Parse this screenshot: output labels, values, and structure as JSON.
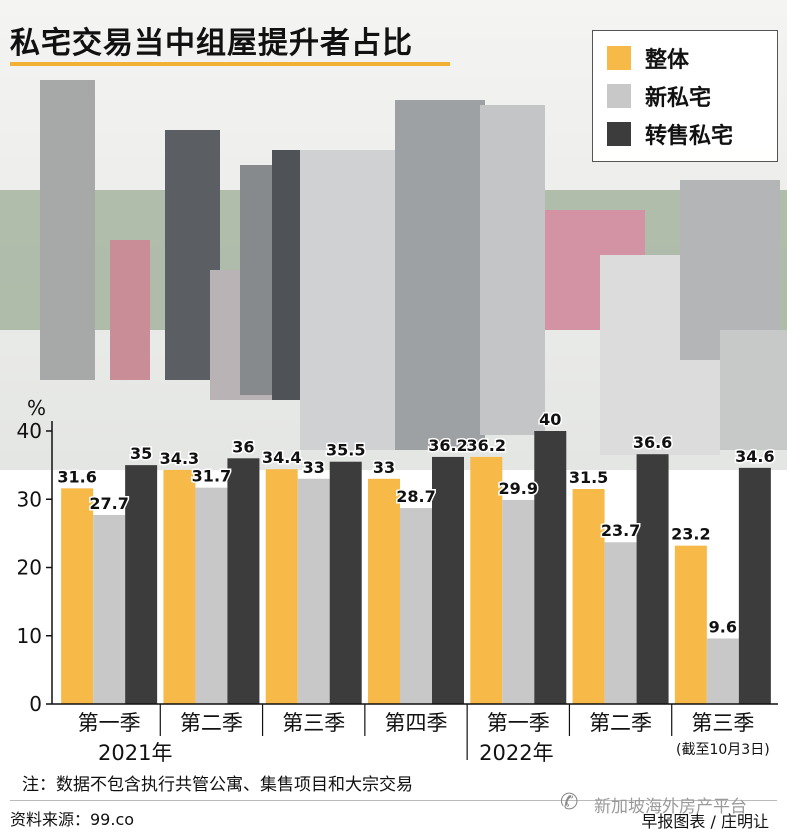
{
  "title": "私宅交易当中组屋提升者占比",
  "legend": [
    {
      "label": "整体",
      "color": "#F7B948"
    },
    {
      "label": "新私宅",
      "color": "#C8C8C8"
    },
    {
      "label": "转售私宅",
      "color": "#3C3C3C"
    }
  ],
  "chart_data": {
    "type": "bar",
    "unit": "%",
    "categories": [
      "第一季",
      "第二季",
      "第三季",
      "第四季",
      "第一季",
      "第二季",
      "第三季"
    ],
    "groups": [
      {
        "label": "2021年"
      },
      {
        "label": "2022年"
      }
    ],
    "last_note": "(截至10月3日)",
    "series": [
      {
        "name": "整体",
        "color": "#F7B948",
        "values": [
          31.6,
          34.3,
          34.4,
          33,
          36.2,
          31.5,
          23.2
        ]
      },
      {
        "name": "新私宅",
        "color": "#C8C8C8",
        "values": [
          27.7,
          31.7,
          33,
          28.7,
          29.9,
          23.7,
          9.6
        ]
      },
      {
        "name": "转售私宅",
        "color": "#3C3C3C",
        "values": [
          35,
          36,
          35.5,
          36.2,
          40,
          36.6,
          34.6
        ]
      }
    ],
    "yticks": [
      0,
      10,
      20,
      30,
      40
    ],
    "ylim": [
      0,
      40
    ],
    "grid": false
  },
  "note": "注：数据不包含执行共管公寓、集售项目和大宗交易",
  "source": "资料来源：99.co",
  "credit": "早报图表 / 庄明让",
  "watermark": "新加坡海外房产平台"
}
